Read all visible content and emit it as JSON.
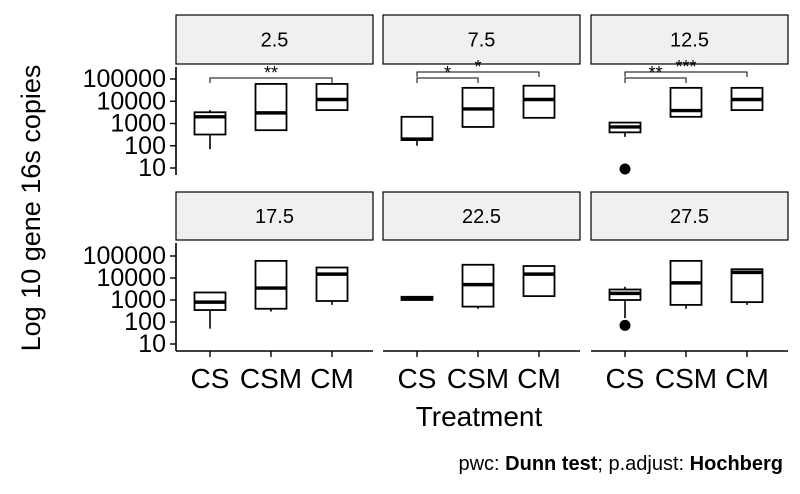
{
  "chart_data": {
    "type": "boxplot",
    "ylabel": "Log 10 gene 16s copies",
    "xlabel": "Treatment",
    "y_scale": "log10",
    "ylim": [
      10,
      100000
    ],
    "y_ticks": [
      10,
      100,
      1000,
      10000,
      100000
    ],
    "y_tick_labels": [
      "10",
      "100",
      "1000",
      "10000",
      "100000"
    ],
    "categories": [
      "CS",
      "CSM",
      "CM"
    ],
    "caption": {
      "prefix": "pwc: ",
      "test": "Dunn test",
      "mid": "; p.adjust: ",
      "method": "Hochberg"
    },
    "panels": [
      {
        "label": "2.5",
        "boxes": [
          {
            "category": "CS",
            "min": 70,
            "q1": 320,
            "median": 2000,
            "q3": 3200,
            "max": 4000,
            "outliers": []
          },
          {
            "category": "CSM",
            "min": 500,
            "q1": 500,
            "median": 3000,
            "q3": 60000,
            "max": 60000,
            "outliers": []
          },
          {
            "category": "CM",
            "min": 4000,
            "q1": 4000,
            "median": 12000,
            "q3": 60000,
            "max": 60000,
            "outliers": []
          }
        ],
        "comparisons": [
          {
            "from": "CS",
            "to": "CM",
            "label": "**",
            "level": 0
          }
        ]
      },
      {
        "label": "7.5",
        "boxes": [
          {
            "category": "CS",
            "min": 100,
            "q1": 180,
            "median": 200,
            "q3": 2000,
            "max": 2000,
            "outliers": []
          },
          {
            "category": "CSM",
            "min": 700,
            "q1": 700,
            "median": 4500,
            "q3": 40000,
            "max": 40000,
            "outliers": []
          },
          {
            "category": "CM",
            "min": 1800,
            "q1": 1800,
            "median": 12000,
            "q3": 50000,
            "max": 50000,
            "outliers": []
          }
        ],
        "comparisons": [
          {
            "from": "CS",
            "to": "CSM",
            "label": "*",
            "level": 0
          },
          {
            "from": "CS",
            "to": "CM",
            "label": "*",
            "level": 1
          }
        ]
      },
      {
        "label": "12.5",
        "boxes": [
          {
            "category": "CS",
            "min": 250,
            "q1": 400,
            "median": 700,
            "q3": 1100,
            "max": 1100,
            "outliers": [
              9
            ]
          },
          {
            "category": "CSM",
            "min": 2000,
            "q1": 2000,
            "median": 3800,
            "q3": 40000,
            "max": 40000,
            "outliers": []
          },
          {
            "category": "CM",
            "min": 4000,
            "q1": 4000,
            "median": 12000,
            "q3": 40000,
            "max": 40000,
            "outliers": []
          }
        ],
        "comparisons": [
          {
            "from": "CS",
            "to": "CSM",
            "label": "**",
            "level": 0
          },
          {
            "from": "CS",
            "to": "CM",
            "label": "***",
            "level": 1
          }
        ]
      },
      {
        "label": "17.5",
        "boxes": [
          {
            "category": "CS",
            "min": 50,
            "q1": 350,
            "median": 800,
            "q3": 2200,
            "max": 2200,
            "outliers": []
          },
          {
            "category": "CSM",
            "min": 300,
            "q1": 400,
            "median": 3500,
            "q3": 60000,
            "max": 60000,
            "outliers": []
          },
          {
            "category": "CM",
            "min": 600,
            "q1": 900,
            "median": 15000,
            "q3": 30000,
            "max": 30000,
            "outliers": []
          }
        ],
        "comparisons": []
      },
      {
        "label": "22.5",
        "boxes": [
          {
            "category": "CS",
            "min": 1000,
            "q1": 1000,
            "median": 1200,
            "q3": 1400,
            "max": 1400,
            "outliers": []
          },
          {
            "category": "CSM",
            "min": 400,
            "q1": 500,
            "median": 5000,
            "q3": 40000,
            "max": 40000,
            "outliers": []
          },
          {
            "category": "CM",
            "min": 1400,
            "q1": 1500,
            "median": 15000,
            "q3": 35000,
            "max": 35000,
            "outliers": []
          }
        ],
        "comparisons": []
      },
      {
        "label": "27.5",
        "boxes": [
          {
            "category": "CS",
            "min": 150,
            "q1": 1000,
            "median": 2000,
            "q3": 3000,
            "max": 4000,
            "outliers": [
              70
            ]
          },
          {
            "category": "CSM",
            "min": 400,
            "q1": 600,
            "median": 6000,
            "q3": 60000,
            "max": 60000,
            "outliers": []
          },
          {
            "category": "CM",
            "min": 600,
            "q1": 800,
            "median": 18000,
            "q3": 25000,
            "max": 25000,
            "outliers": []
          }
        ],
        "comparisons": []
      }
    ]
  }
}
